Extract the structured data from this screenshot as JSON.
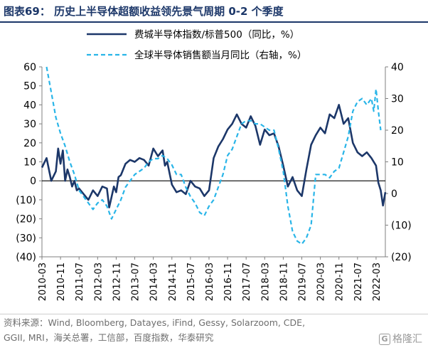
{
  "figure": {
    "title": "图表69：  历史上半导体超额收益领先景气周期 0-2 个季度",
    "source_line1": "资料来源：Wind, Bloomberg, Datayes, iFind, Gessy, Solarzoom, CDE,",
    "source_line2": "GGII, MRI，海关总署，工信部，百度指数，华泰研究",
    "watermark": "格隆汇"
  },
  "colors": {
    "primary": "#1c3769",
    "secondary": "#29b5e8",
    "zero_line": "#000000"
  },
  "chart_data": {
    "type": "line",
    "title": "",
    "xlabel": "",
    "ylabel": "",
    "ylabel_right": "",
    "left_axis": {
      "min": -40,
      "max": 60,
      "step": 10,
      "tick_labels": [
        "(40)",
        "(30)",
        "(20)",
        "(10)",
        "0",
        "10",
        "20",
        "30",
        "40",
        "50",
        "60"
      ]
    },
    "right_axis": {
      "min": -20,
      "max": 40,
      "step": 10,
      "tick_labels": [
        "(20)",
        "(10)",
        "0",
        "10",
        "20",
        "30",
        "40"
      ]
    },
    "x_tick_labels": [
      "2010-03",
      "2010-11",
      "2011-07",
      "2012-03",
      "2012-11",
      "2013-07",
      "2014-03",
      "2014-11",
      "2015-07",
      "2016-03",
      "2016-11",
      "2017-07",
      "2018-03",
      "2018-11",
      "2019-07",
      "2020-03",
      "2020-11",
      "2021-07",
      "2022-03"
    ],
    "x_start": "2010-03",
    "x_end": "2022-07",
    "grid": false,
    "legend_position": "top",
    "series": [
      {
        "name": "费城半导体指数/标普500（同比，%）",
        "axis": "left",
        "style": "solid",
        "x": [
          "2010-03",
          "2010-05",
          "2010-07",
          "2010-09",
          "2010-10",
          "2010-11",
          "2010-12",
          "2011-01",
          "2011-02",
          "2011-03",
          "2011-04",
          "2011-05",
          "2011-06",
          "2011-07",
          "2011-09",
          "2011-11",
          "2012-01",
          "2012-03",
          "2012-05",
          "2012-07",
          "2012-08",
          "2012-10",
          "2012-11",
          "2012-12",
          "2013-01",
          "2013-03",
          "2013-05",
          "2013-07",
          "2013-09",
          "2013-11",
          "2014-01",
          "2014-03",
          "2014-05",
          "2014-07",
          "2014-08",
          "2014-09",
          "2014-11",
          "2015-01",
          "2015-03",
          "2015-05",
          "2015-07",
          "2015-09",
          "2015-11",
          "2016-01",
          "2016-03",
          "2016-05",
          "2016-07",
          "2016-09",
          "2016-11",
          "2017-01",
          "2017-03",
          "2017-05",
          "2017-07",
          "2017-09",
          "2017-11",
          "2018-01",
          "2018-03",
          "2018-05",
          "2018-07",
          "2018-09",
          "2018-11",
          "2019-01",
          "2019-03",
          "2019-05",
          "2019-07",
          "2019-09",
          "2019-11",
          "2020-01",
          "2020-03",
          "2020-05",
          "2020-07",
          "2020-09",
          "2020-11",
          "2021-01",
          "2021-03",
          "2021-05",
          "2021-07",
          "2021-09",
          "2021-11",
          "2022-01",
          "2022-03",
          "2022-04",
          "2022-05",
          "2022-06",
          "2022-07"
        ],
        "values": [
          7,
          12,
          0,
          5,
          17,
          9,
          16,
          0,
          6,
          2,
          -3,
          0,
          -5,
          -4,
          -7,
          -10,
          -5,
          -8,
          -3,
          -4,
          -14,
          -3,
          -6,
          2,
          3,
          9,
          11,
          10,
          12,
          11,
          8,
          17,
          13,
          16,
          8,
          10,
          -2,
          -6,
          -5,
          -7,
          0,
          -3,
          -4,
          -8,
          -5,
          12,
          18,
          22,
          27,
          30,
          35,
          30,
          28,
          34,
          29,
          19,
          27,
          24,
          25,
          18,
          8,
          -3,
          2,
          -5,
          -8,
          6,
          19,
          24,
          28,
          25,
          35,
          33,
          40,
          30,
          33,
          20,
          15,
          13,
          15,
          12,
          8,
          -1,
          -5,
          -13,
          -6
        ]
      },
      {
        "name": "全球半导体销售额当月同比（右轴，%）",
        "axis": "right",
        "style": "dashed",
        "x": [
          "2010-05",
          "2010-07",
          "2010-09",
          "2010-11",
          "2011-01",
          "2011-03",
          "2011-05",
          "2011-07",
          "2011-09",
          "2011-11",
          "2012-01",
          "2012-03",
          "2012-05",
          "2012-07",
          "2012-09",
          "2012-11",
          "2013-01",
          "2013-03",
          "2013-05",
          "2013-07",
          "2013-09",
          "2013-11",
          "2014-01",
          "2014-03",
          "2014-05",
          "2014-07",
          "2014-09",
          "2014-11",
          "2015-01",
          "2015-03",
          "2015-05",
          "2015-07",
          "2015-09",
          "2015-11",
          "2016-01",
          "2016-03",
          "2016-05",
          "2016-07",
          "2016-09",
          "2016-11",
          "2017-01",
          "2017-03",
          "2017-05",
          "2017-07",
          "2017-09",
          "2017-11",
          "2018-01",
          "2018-03",
          "2018-05",
          "2018-07",
          "2018-09",
          "2018-11",
          "2019-01",
          "2019-03",
          "2019-05",
          "2019-07",
          "2019-09",
          "2019-11",
          "2020-01",
          "2020-03",
          "2020-05",
          "2020-07",
          "2020-09",
          "2020-11",
          "2021-01",
          "2021-03",
          "2021-05",
          "2021-07",
          "2021-09",
          "2021-11",
          "2022-01",
          "2022-02",
          "2022-03",
          "2022-04",
          "2022-05"
        ],
        "values": [
          40,
          32,
          24,
          19,
          15,
          10,
          6,
          1,
          -1,
          -3,
          -5,
          -3,
          -2,
          -4,
          -8,
          -5,
          -2,
          2,
          4,
          6,
          7,
          8,
          10,
          11,
          11,
          12,
          11,
          9,
          6,
          6,
          2,
          -1,
          -3,
          -6,
          -7,
          -4,
          -2,
          2,
          6,
          12,
          14,
          18,
          22,
          23,
          23,
          22,
          22,
          21,
          20,
          20,
          14,
          7,
          -4,
          -12,
          -15,
          -16,
          -14,
          -10,
          6,
          6,
          6,
          5,
          7,
          8,
          13,
          18,
          26,
          29,
          30,
          28,
          30,
          26,
          33,
          26,
          20
        ]
      }
    ]
  }
}
